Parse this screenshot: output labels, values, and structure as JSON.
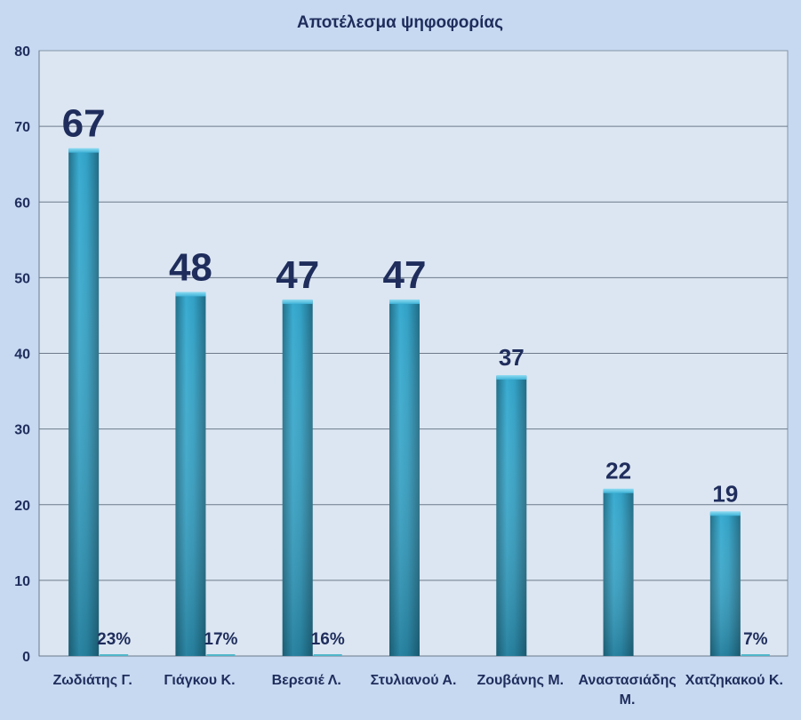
{
  "chart_data": {
    "type": "bar",
    "title": "Αποτέλεσμα ψηφοφορίας",
    "xlabel": "",
    "ylabel": "",
    "ylim": [
      0,
      80
    ],
    "yticks": [
      0,
      10,
      20,
      30,
      40,
      50,
      60,
      70,
      80
    ],
    "grid": true,
    "legend": "none",
    "categories": [
      [
        "Ζωδιάτης Γ."
      ],
      [
        "Γιάγκου Κ."
      ],
      [
        "Βερεσιέ Λ."
      ],
      [
        "Στυλιανού Α."
      ],
      [
        "Ζουβάνης Μ."
      ],
      [
        "Αναστασιάδης",
        "Μ."
      ],
      [
        "Χατζηκακού Κ."
      ]
    ],
    "series": [
      {
        "values": [
          67,
          48,
          47,
          47,
          37,
          22,
          19
        ],
        "labels": [
          "67",
          "48",
          "47",
          "47",
          "37",
          "22",
          "19"
        ]
      },
      {
        "values": [
          0.23,
          0.17,
          0.16,
          0,
          0,
          0,
          0.07
        ],
        "labels": [
          "23%",
          "17%",
          "16%",
          "",
          "",
          "",
          "7%"
        ]
      }
    ]
  },
  "colors": {
    "background": "#c6d9f1",
    "plot_area": "#dce6f2",
    "bar": "#31a0c4",
    "bar_dark": "#216f88",
    "bar_light": "#5ec3e2",
    "label": "#1f2d5c",
    "grid": "#6d7a8a"
  }
}
